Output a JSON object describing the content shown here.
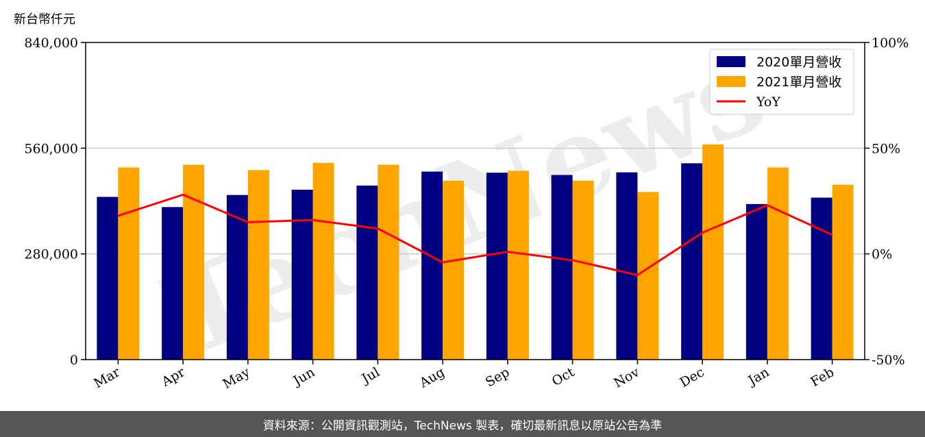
{
  "chart_data": {
    "type": "bar",
    "categories": [
      "Mar",
      "Apr",
      "May",
      "Jun",
      "Jul",
      "Aug",
      "Sep",
      "Oct",
      "Nov",
      "Dec",
      "Jan",
      "Feb"
    ],
    "series": [
      {
        "name": "2020單月營收",
        "values": [
          431000,
          404000,
          436000,
          450000,
          461000,
          498000,
          495000,
          489000,
          496000,
          520000,
          412000,
          429000
        ],
        "color": "#000080"
      },
      {
        "name": "2021單月營收",
        "values": [
          509000,
          516000,
          502000,
          521000,
          516000,
          474000,
          500000,
          474000,
          444000,
          570000,
          509000,
          463000
        ],
        "color": "#FFA500"
      }
    ],
    "line_series": {
      "name": "YoY",
      "values": [
        18,
        28,
        15,
        16,
        12,
        -4,
        1,
        -3,
        -10,
        10,
        23,
        9
      ],
      "color": "#FF0000",
      "axis": "right"
    },
    "y_left": {
      "label": "新台幣仟元",
      "ylim": [
        0,
        840000
      ],
      "ticks": [
        "0",
        "280,000",
        "560,000",
        "840,000"
      ]
    },
    "y_right": {
      "ylim": [
        -50,
        100
      ],
      "ticks": [
        "-50%",
        "0%",
        "50%",
        "100%"
      ]
    },
    "grid": "horizontal",
    "legend": "top-right"
  },
  "watermark": "TechNews",
  "footer": {
    "text": "資料來源：公開資訊觀測站，TechNews 製表，確切最新訊息以原站公告為準"
  }
}
